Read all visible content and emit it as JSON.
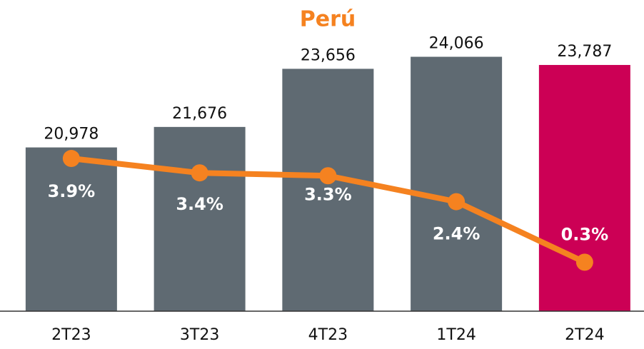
{
  "chart_data": {
    "type": "bar",
    "title": "Perú",
    "categories": [
      "2T23",
      "3T23",
      "4T23",
      "1T24",
      "2T24"
    ],
    "ylim": [
      15400,
      26000
    ],
    "y2lim": [
      -1.4,
      9.4
    ],
    "series": [
      {
        "type": "bar",
        "colors": [
          "#5f6a72",
          "#5f6a72",
          "#5f6a72",
          "#5f6a72",
          "#cc0055"
        ],
        "values": [
          20978,
          21676,
          23656,
          24066,
          23787
        ],
        "value_labels": [
          "20,978",
          "21,676",
          "23,656",
          "24,066",
          "23,787"
        ]
      },
      {
        "type": "line",
        "axis": "y2",
        "color": "#f58220",
        "values": [
          3.9,
          3.4,
          3.3,
          2.4,
          0.3
        ],
        "value_labels": [
          "3.9%",
          "3.4%",
          "3.3%",
          "2.4%",
          "0.3%"
        ]
      }
    ]
  }
}
